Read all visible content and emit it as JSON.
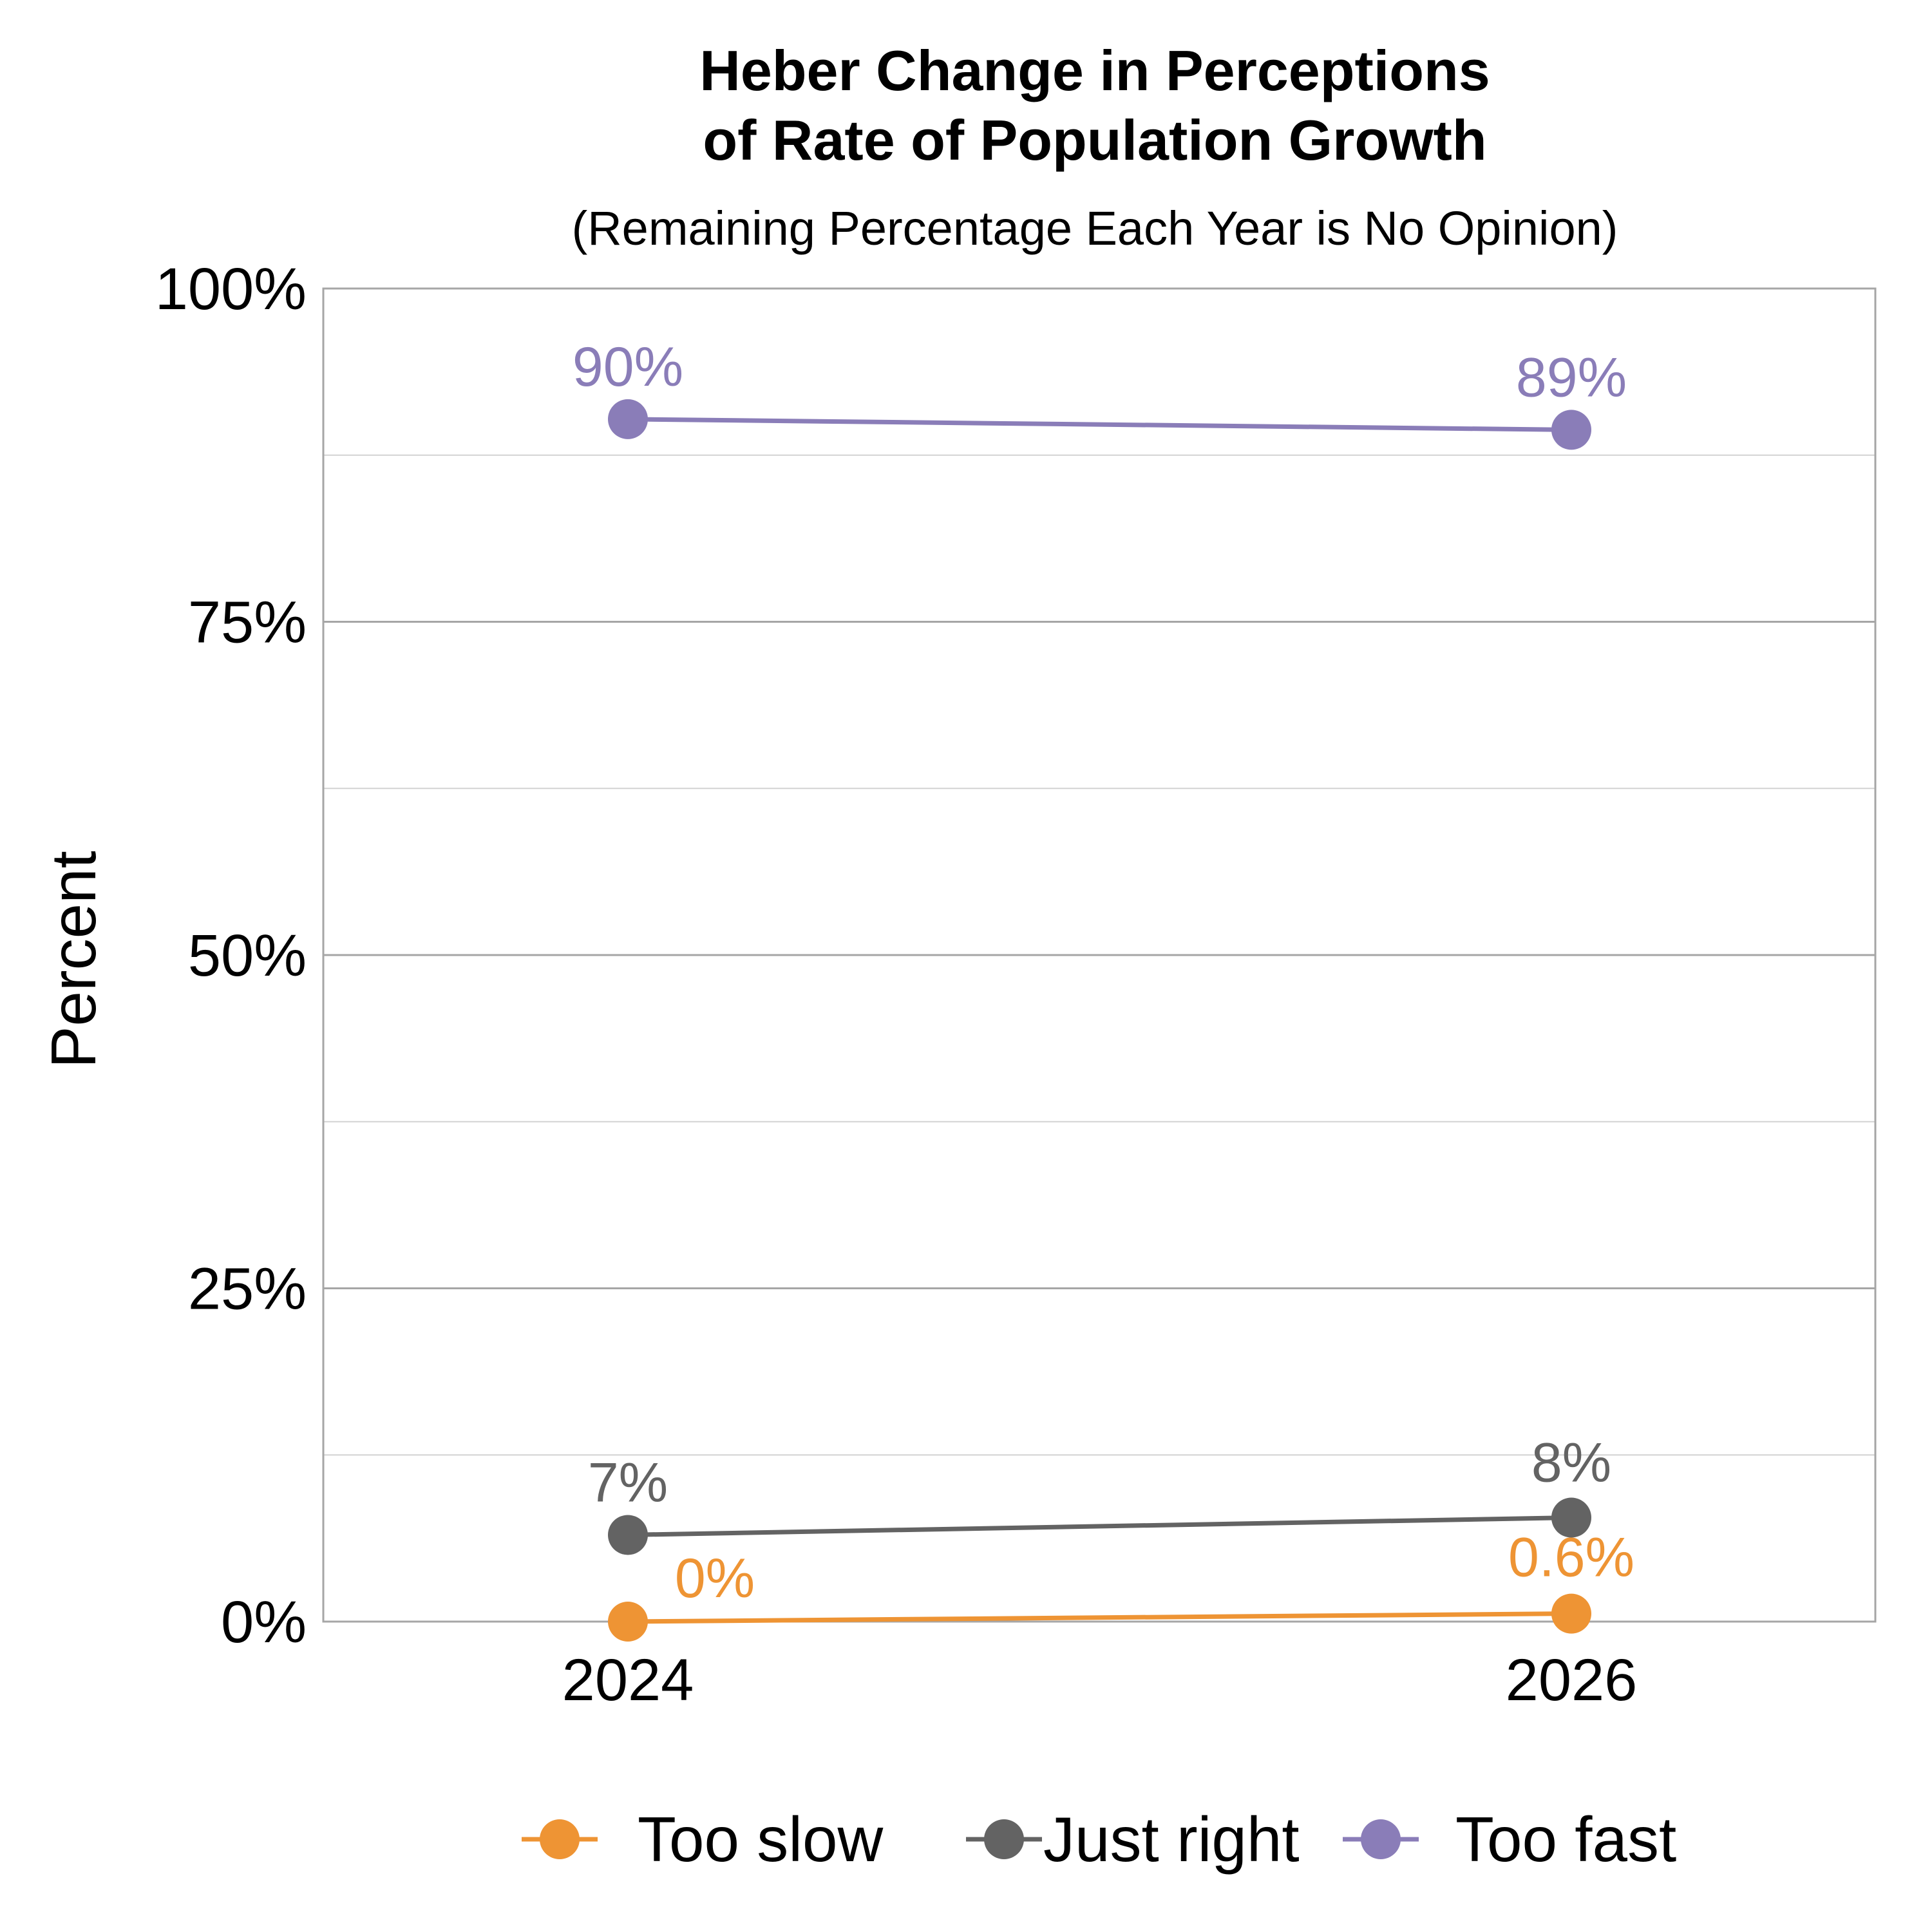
{
  "chart_data": {
    "type": "line",
    "title_lines": [
      "Heber Change in Perceptions",
      "of Rate of Population Growth"
    ],
    "subtitle": "(Remaining Percentage Each Year is No Opinion)",
    "ylabel": "Percent",
    "xlabel": "",
    "categories": [
      "2024",
      "2026"
    ],
    "ylim": [
      0,
      100
    ],
    "yticks": [
      0,
      25,
      50,
      75,
      100
    ],
    "ytick_labels": [
      "0%",
      "25%",
      "50%",
      "75%",
      "100%"
    ],
    "grid": true,
    "legend_position": "bottom",
    "series": [
      {
        "name": "Too slow",
        "color": "#EE9434",
        "values": [
          0,
          0.6
        ],
        "labels": [
          "0%",
          "0.6%"
        ]
      },
      {
        "name": "Just right",
        "color": "#636363",
        "values": [
          6.5,
          7.8
        ],
        "labels": [
          "7%",
          "8%"
        ]
      },
      {
        "name": "Too fast",
        "color": "#8A7DB8",
        "values": [
          90.2,
          89.4
        ],
        "labels": [
          "90%",
          "89%"
        ]
      }
    ]
  }
}
